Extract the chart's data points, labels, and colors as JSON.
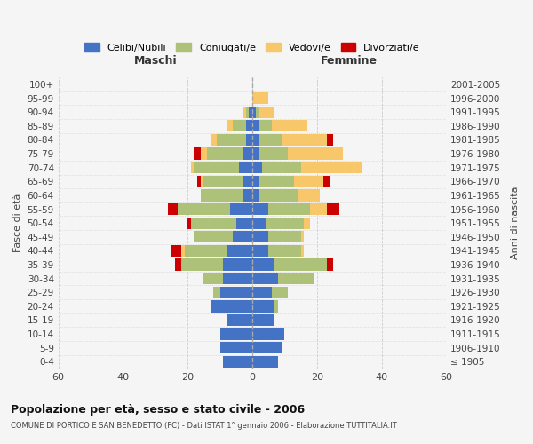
{
  "age_groups": [
    "100+",
    "95-99",
    "90-94",
    "85-89",
    "80-84",
    "75-79",
    "70-74",
    "65-69",
    "60-64",
    "55-59",
    "50-54",
    "45-49",
    "40-44",
    "35-39",
    "30-34",
    "25-29",
    "20-24",
    "15-19",
    "10-14",
    "5-9",
    "0-4"
  ],
  "birth_years": [
    "≤ 1905",
    "1906-1910",
    "1911-1915",
    "1916-1920",
    "1921-1925",
    "1926-1930",
    "1931-1935",
    "1936-1940",
    "1941-1945",
    "1946-1950",
    "1951-1955",
    "1956-1960",
    "1961-1965",
    "1966-1970",
    "1971-1975",
    "1976-1980",
    "1981-1985",
    "1986-1990",
    "1991-1995",
    "1996-2000",
    "2001-2005"
  ],
  "male": {
    "celibi": [
      0,
      0,
      1,
      2,
      2,
      3,
      4,
      3,
      3,
      7,
      5,
      6,
      8,
      9,
      9,
      10,
      13,
      8,
      10,
      10,
      9
    ],
    "coniugati": [
      0,
      0,
      1,
      4,
      9,
      11,
      14,
      12,
      13,
      16,
      14,
      12,
      13,
      13,
      6,
      2,
      0,
      0,
      0,
      0,
      0
    ],
    "vedovi": [
      0,
      0,
      1,
      2,
      2,
      2,
      1,
      1,
      0,
      0,
      0,
      0,
      1,
      0,
      0,
      0,
      0,
      0,
      0,
      0,
      0
    ],
    "divorziati": [
      0,
      0,
      0,
      0,
      0,
      2,
      0,
      1,
      0,
      3,
      1,
      0,
      3,
      2,
      0,
      0,
      0,
      0,
      0,
      0,
      0
    ]
  },
  "female": {
    "nubili": [
      0,
      0,
      1,
      2,
      2,
      2,
      3,
      2,
      2,
      5,
      4,
      5,
      5,
      7,
      8,
      6,
      7,
      7,
      10,
      9,
      8
    ],
    "coniugate": [
      0,
      0,
      1,
      4,
      7,
      9,
      12,
      11,
      12,
      13,
      12,
      10,
      10,
      16,
      11,
      5,
      1,
      0,
      0,
      0,
      0
    ],
    "vedove": [
      0,
      5,
      5,
      11,
      14,
      17,
      19,
      9,
      7,
      5,
      2,
      1,
      1,
      0,
      0,
      0,
      0,
      0,
      0,
      0,
      0
    ],
    "divorziate": [
      0,
      0,
      0,
      0,
      2,
      0,
      0,
      2,
      0,
      4,
      0,
      0,
      0,
      2,
      0,
      0,
      0,
      0,
      0,
      0,
      0
    ]
  },
  "colors": {
    "celibi_nubili": "#4472c4",
    "coniugati_e": "#adc178",
    "vedovi_e": "#f7c76a",
    "divorziati_e": "#cc0000"
  },
  "xlim": 60,
  "title": "Popolazione per età, sesso e stato civile - 2006",
  "subtitle": "COMUNE DI PORTICO E SAN BENEDETTO (FC) - Dati ISTAT 1° gennaio 2006 - Elaborazione TUTTITALIA.IT",
  "ylabel_left": "Fasce di età",
  "ylabel_right": "Anni di nascita",
  "xlabel_male": "Maschi",
  "xlabel_female": "Femmine",
  "legend_labels": [
    "Celibi/Nubili",
    "Coniugati/e",
    "Vedovi/e",
    "Divorziati/e"
  ],
  "bar_height": 0.85,
  "background_color": "#f5f5f5",
  "grid_color": "#cccccc"
}
